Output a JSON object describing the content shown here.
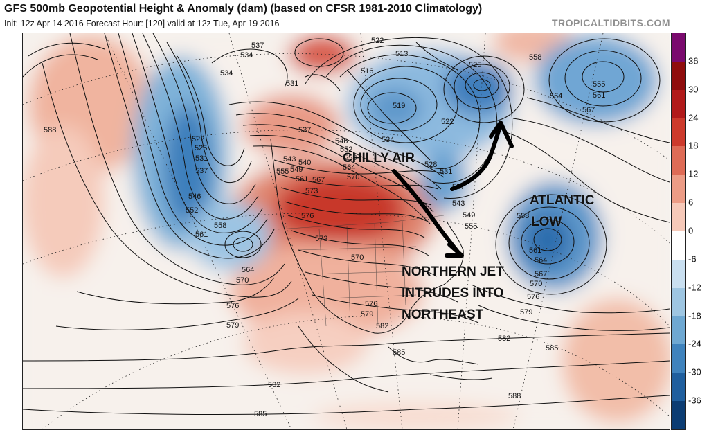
{
  "header": {
    "title": "GFS 500mb Geopotential Height & Anomaly (dam) (based on CFSR 1981-2010 Climatology)",
    "subtitle": "Init: 12z Apr 14 2016   Forecast Hour: [120]   valid at 12z Tue, Apr 19 2016",
    "brand": "TROPICALTIDBITS.COM"
  },
  "annotations": {
    "chilly_air": "CHILLY AIR",
    "atlantic_low_1": "ATLANTIC",
    "atlantic_low_2": "LOW",
    "jet_1": "NORTHERN JET",
    "jet_2": "INTRUDES INTO",
    "jet_3": "NORTHEAST"
  },
  "contour_labels": [
    "537",
    "534",
    "534",
    "531",
    "537",
    "522",
    "513",
    "516",
    "519",
    "525",
    "558",
    "564",
    "567",
    "555",
    "561",
    "588",
    "522",
    "525",
    "531",
    "537",
    "546",
    "552",
    "558",
    "561",
    "564",
    "570",
    "576",
    "579",
    "543",
    "540",
    "549",
    "555",
    "561",
    "567",
    "573",
    "576",
    "573",
    "570",
    "546",
    "552",
    "558",
    "564",
    "570",
    "534",
    "528",
    "531",
    "537",
    "543",
    "549",
    "555",
    "522",
    "558",
    "561",
    "564",
    "567",
    "570",
    "576",
    "579",
    "582",
    "585",
    "582",
    "585",
    "588",
    "585",
    "576",
    "579",
    "582"
  ],
  "colorbar": {
    "labels": [
      "36",
      "30",
      "24",
      "18",
      "12",
      "6",
      "0",
      "-6",
      "-12",
      "-18",
      "-24",
      "-30",
      "-36"
    ],
    "colors": [
      "#7a0a6e",
      "#8f0d0d",
      "#b11a1a",
      "#cc3a2c",
      "#de6b56",
      "#ec9c86",
      "#f6c9b9",
      "#ffffff",
      "#c9dff0",
      "#9ec6e2",
      "#6ea8d2",
      "#3f83bd",
      "#1f5f9e",
      "#0c3d73"
    ]
  }
}
